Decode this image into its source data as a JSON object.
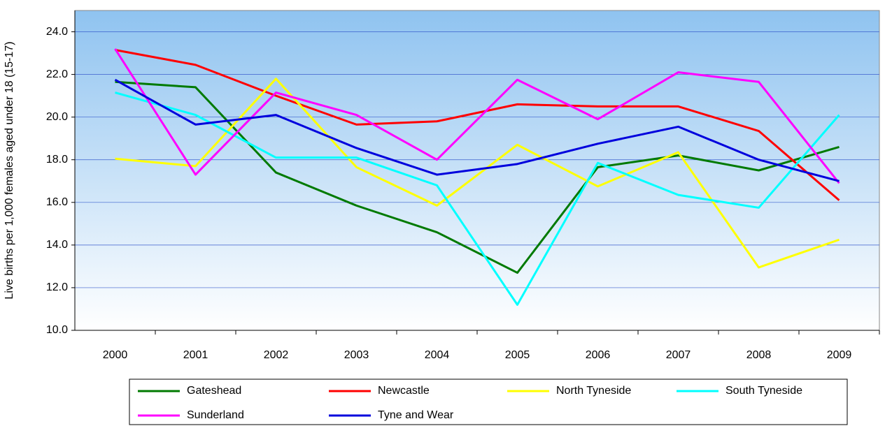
{
  "chart_data": {
    "type": "line",
    "y_label": "Live births per 1,000 females aged under 18 (15-17)",
    "categories": [
      "2000",
      "2001",
      "2002",
      "2003",
      "2004",
      "2005",
      "2006",
      "2007",
      "2008",
      "2009"
    ],
    "ylim": [
      10,
      25
    ],
    "yticks": [
      {
        "value": 10,
        "label": "10.0"
      },
      {
        "value": 12,
        "label": "12.0"
      },
      {
        "value": 14,
        "label": "14.0"
      },
      {
        "value": 16,
        "label": "16.0"
      },
      {
        "value": 18,
        "label": "18.0"
      },
      {
        "value": 20,
        "label": "20.0"
      },
      {
        "value": 22,
        "label": "22.0"
      },
      {
        "value": 24,
        "label": "24.0"
      }
    ],
    "grid": true,
    "series": [
      {
        "name": "Gateshead",
        "color": "#007a00",
        "values": [
          21.65,
          21.4,
          17.4,
          15.85,
          14.6,
          12.7,
          17.65,
          18.2,
          17.5,
          18.6
        ]
      },
      {
        "name": "Newcastle",
        "color": "#ff0000",
        "values": [
          23.15,
          22.45,
          21.0,
          19.65,
          19.8,
          20.6,
          20.5,
          20.5,
          19.35,
          16.1
        ]
      },
      {
        "name": "North Tyneside",
        "color": "#ffff00",
        "values": [
          18.05,
          17.7,
          21.8,
          17.65,
          15.85,
          18.7,
          16.75,
          18.35,
          12.95,
          14.25
        ]
      },
      {
        "name": "South Tyneside",
        "color": "#00ffff",
        "values": [
          21.15,
          20.1,
          18.1,
          18.1,
          16.8,
          11.2,
          17.85,
          16.35,
          15.75,
          20.1
        ]
      },
      {
        "name": "Sunderland",
        "color": "#ff00ff",
        "values": [
          23.2,
          17.3,
          21.15,
          20.1,
          18.0,
          21.75,
          19.9,
          22.1,
          21.65,
          16.9
        ]
      },
      {
        "name": "Tyne and Wear",
        "color": "#0000dd",
        "values": [
          21.75,
          19.65,
          20.1,
          18.55,
          17.3,
          17.8,
          18.75,
          19.55,
          18.0,
          17.0
        ]
      }
    ]
  }
}
